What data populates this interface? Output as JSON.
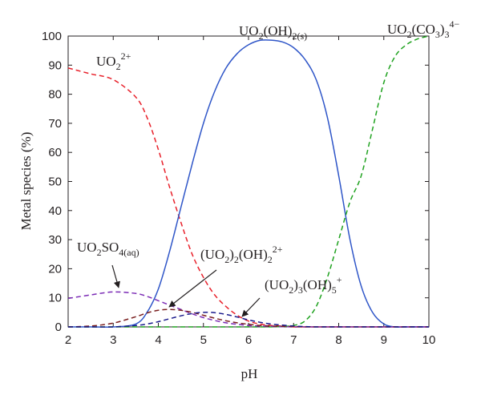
{
  "chart_data": {
    "type": "line",
    "xlabel": "pH",
    "ylabel": "Metal species (%)",
    "xlim": [
      2,
      10
    ],
    "ylim": [
      0,
      100
    ],
    "x_ticks": [
      "2",
      "3",
      "4",
      "5",
      "6",
      "7",
      "8",
      "9",
      "10"
    ],
    "y_ticks": [
      "0",
      "10",
      "20",
      "30",
      "40",
      "50",
      "60",
      "70",
      "80",
      "90",
      "100"
    ],
    "grid": false,
    "x": [
      2.0,
      2.5,
      3.0,
      3.5,
      3.75,
      4.0,
      4.25,
      4.5,
      4.75,
      5.0,
      5.25,
      5.5,
      5.75,
      6.0,
      6.25,
      6.5,
      6.75,
      7.0,
      7.25,
      7.5,
      7.75,
      8.0,
      8.25,
      8.5,
      8.75,
      9.0,
      9.25,
      9.5,
      9.75,
      10.0
    ],
    "series": [
      {
        "label": {
          "base": "UO",
          "parts": [
            {
              "t": "2",
              "pos": "sub"
            },
            {
              "t": "2+",
              "pos": "sup"
            }
          ]
        },
        "color": "#e8202a",
        "dashed": true,
        "values": [
          89,
          87,
          85,
          79,
          72,
          61,
          48,
          36,
          25,
          17,
          11,
          7,
          4,
          2,
          1,
          0.5,
          0.3,
          0,
          0,
          0,
          0,
          0,
          0,
          0,
          0,
          0,
          0,
          0,
          0,
          0
        ]
      },
      {
        "label": {
          "base": "UO",
          "parts": [
            {
              "t": "2",
              "pos": "sub"
            },
            {
              "t": "(OH)",
              "pos": "base"
            },
            {
              "t": "2(s)",
              "pos": "sub"
            }
          ]
        },
        "color": "#2f56c8",
        "dashed": false,
        "values": [
          0,
          0,
          0,
          1,
          5,
          13,
          26,
          41,
          56,
          70,
          81,
          89,
          94,
          97,
          98.5,
          98.6,
          98,
          96,
          92,
          85,
          72,
          52,
          30,
          14,
          5,
          1,
          0,
          0,
          0,
          0
        ]
      },
      {
        "label": {
          "base": "UO",
          "parts": [
            {
              "t": "2",
              "pos": "sub"
            },
            {
              "t": "(CO",
              "pos": "base"
            },
            {
              "t": "3",
              "pos": "sub"
            },
            {
              "t": ")",
              "pos": "base"
            },
            {
              "t": "3",
              "pos": "sub"
            },
            {
              "t": "4−",
              "pos": "sup"
            }
          ]
        },
        "color": "#1fa21f",
        "dashed": true,
        "values": [
          0,
          0,
          0,
          0,
          0,
          0,
          0,
          0,
          0,
          0,
          0,
          0,
          0,
          0,
          0,
          0,
          0.2,
          0.5,
          2,
          7,
          17,
          30,
          43,
          52,
          68,
          84,
          93,
          97,
          99,
          100
        ]
      },
      {
        "label": {
          "base": "UO",
          "parts": [
            {
              "t": "2",
              "pos": "sub"
            },
            {
              "t": "SO",
              "pos": "base"
            },
            {
              "t": "4(aq)",
              "pos": "sub"
            }
          ]
        },
        "color": "#7b2bb5",
        "dashed": true,
        "values": [
          9.8,
          11,
          12,
          11.5,
          10.5,
          9,
          7.5,
          6,
          4.5,
          3.2,
          2.2,
          1.4,
          0.9,
          0.5,
          0.3,
          0.2,
          0.1,
          0,
          0,
          0,
          0,
          0,
          0,
          0,
          0,
          0,
          0,
          0,
          0,
          0
        ]
      },
      {
        "label": {
          "base": "(UO",
          "parts": [
            {
              "t": "2",
              "pos": "sub"
            },
            {
              "t": ")",
              "pos": "base"
            },
            {
              "t": "2",
              "pos": "sub"
            },
            {
              "t": "(OH)",
              "pos": "base"
            },
            {
              "t": "2",
              "pos": "sub"
            },
            {
              "t": "2+",
              "pos": "sup"
            }
          ]
        },
        "color": "#7a1f1f",
        "dashed": true,
        "values": [
          0,
          0.3,
          1.3,
          3.5,
          4.8,
          5.7,
          6,
          5.7,
          5,
          4,
          3,
          2.1,
          1.4,
          0.9,
          0.5,
          0.3,
          0.2,
          0.1,
          0,
          0,
          0,
          0,
          0,
          0,
          0,
          0,
          0,
          0,
          0,
          0
        ]
      },
      {
        "label": {
          "base": "(UO",
          "parts": [
            {
              "t": "2",
              "pos": "sub"
            },
            {
              "t": ")",
              "pos": "base"
            },
            {
              "t": "3",
              "pos": "sub"
            },
            {
              "t": "(OH)",
              "pos": "base"
            },
            {
              "t": "5",
              "pos": "sub"
            },
            {
              "t": "+",
              "pos": "sup"
            }
          ]
        },
        "color": "#1a1a8c",
        "dashed": true,
        "values": [
          0,
          0,
          0,
          0.5,
          1,
          1.8,
          2.8,
          3.8,
          4.6,
          5,
          4.9,
          4.3,
          3.4,
          2.4,
          1.6,
          1,
          0.6,
          0.3,
          0.1,
          0,
          0,
          0,
          0,
          0,
          0,
          0,
          0,
          0,
          0,
          0
        ]
      }
    ]
  }
}
